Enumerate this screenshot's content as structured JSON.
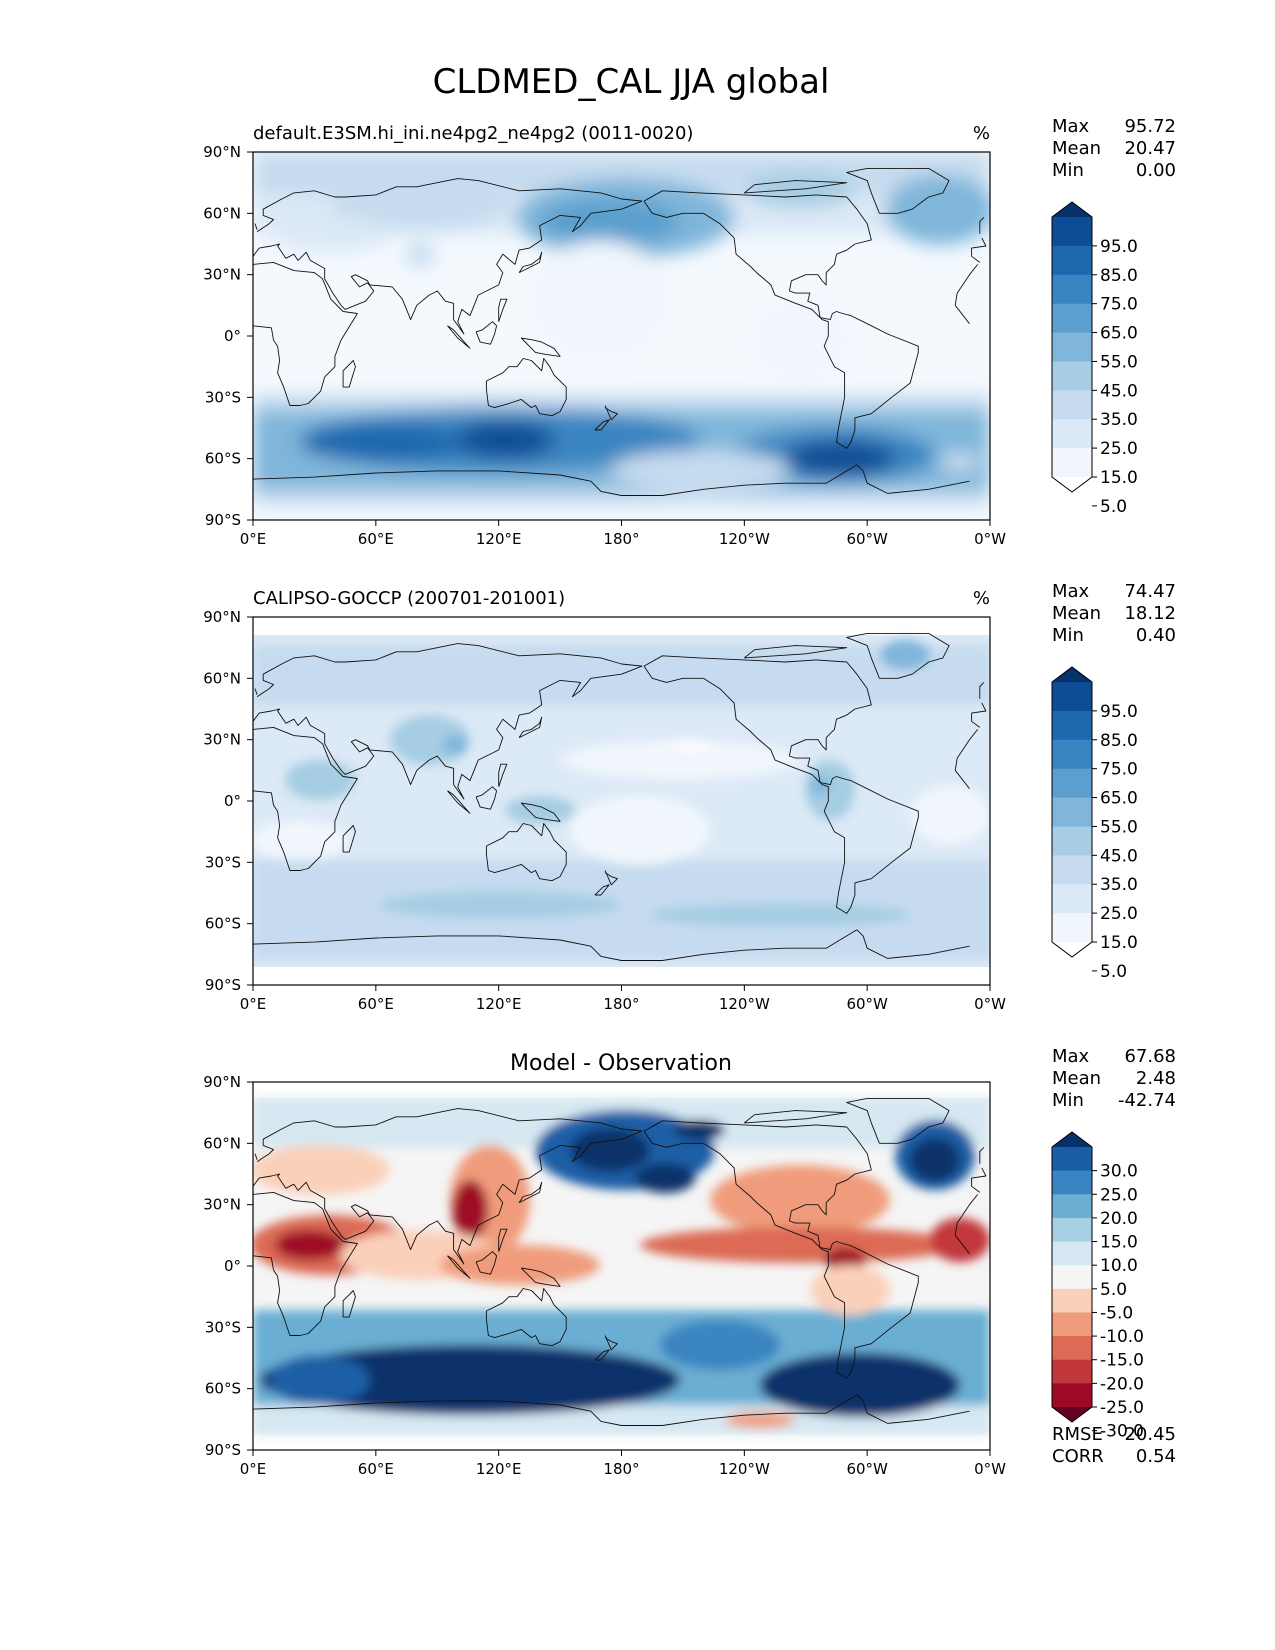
{
  "figure": {
    "title": "CLDMED_CAL JJA global"
  },
  "axes": {
    "lat_ticks": [
      "90°N",
      "60°N",
      "30°N",
      "0°",
      "30°S",
      "60°S",
      "90°S"
    ],
    "lon_ticks": [
      "0°E",
      "60°E",
      "120°E",
      "180°",
      "120°W",
      "60°W",
      "0°W"
    ]
  },
  "panels": [
    {
      "id": "model",
      "left_title": "default.E3SM.hi_ini.ne4pg2_ne4pg2 (0011-0020)",
      "center_title": "",
      "units": "%",
      "stats": [
        {
          "label": "Max",
          "value": "95.72"
        },
        {
          "label": "Mean",
          "value": "20.47"
        },
        {
          "label": "Min",
          "value": "0.00"
        }
      ],
      "colorbar_labels": [
        "95.0",
        "85.0",
        "75.0",
        "65.0",
        "55.0",
        "45.0",
        "35.0",
        "25.0",
        "15.0",
        "5.0"
      ],
      "colorscale": [
        "#ffffff",
        "#f0f6fc",
        "#dce9f6",
        "#c6dbef",
        "#a6cde3",
        "#7fb6da",
        "#5a9fce",
        "#3a85c1",
        "#1e68af",
        "#0c4d95",
        "#08306b"
      ]
    },
    {
      "id": "obs",
      "left_title": "CALIPSO-GOCCP (200701-201001)",
      "center_title": "",
      "units": "%",
      "stats": [
        {
          "label": "Max",
          "value": "74.47"
        },
        {
          "label": "Mean",
          "value": "18.12"
        },
        {
          "label": "Min",
          "value": "0.40"
        }
      ],
      "colorbar_labels": [
        "95.0",
        "85.0",
        "75.0",
        "65.0",
        "55.0",
        "45.0",
        "35.0",
        "25.0",
        "15.0",
        "5.0"
      ],
      "colorscale": [
        "#ffffff",
        "#f0f6fc",
        "#dce9f6",
        "#c6dbef",
        "#a6cde3",
        "#7fb6da",
        "#5a9fce",
        "#3a85c1",
        "#1e68af",
        "#0c4d95",
        "#08306b"
      ]
    },
    {
      "id": "diff",
      "left_title": "",
      "center_title": "Model - Observation",
      "units": "",
      "stats": [
        {
          "label": "Max",
          "value": "67.68"
        },
        {
          "label": "Mean",
          "value": "2.48"
        },
        {
          "label": "Min",
          "value": "-42.74"
        }
      ],
      "colorbar_labels": [
        "30.0",
        "25.0",
        "20.0",
        "15.0",
        "10.0",
        "5.0",
        "-5.0",
        "-10.0",
        "-15.0",
        "-20.0",
        "-25.0",
        "-30.0"
      ],
      "colorscale": [
        "#67001f",
        "#9e0a26",
        "#c2383a",
        "#dc6a55",
        "#f09c7b",
        "#fbd0b9",
        "#f5f5f5",
        "#d6e8f2",
        "#a8d0e5",
        "#6aaed3",
        "#3a85c1",
        "#1a5ea6",
        "#08306b"
      ],
      "metrics": [
        {
          "label": "RMSE",
          "value": "20.45"
        },
        {
          "label": "CORR",
          "value": "0.54"
        }
      ]
    }
  ]
}
